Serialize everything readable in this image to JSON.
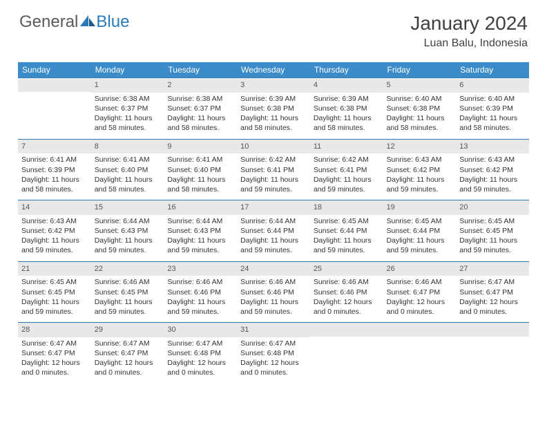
{
  "logo": {
    "text_gray": "General",
    "text_blue": "Blue"
  },
  "header": {
    "month_title": "January 2024",
    "location": "Luan Balu, Indonesia"
  },
  "colors": {
    "header_bar": "#3b8bc8",
    "daynum_bg": "#e8e8e8",
    "border": "#2a7ab9",
    "text": "#333333",
    "logo_gray": "#5a5a5a",
    "logo_blue": "#2a7ab9"
  },
  "dow": [
    "Sunday",
    "Monday",
    "Tuesday",
    "Wednesday",
    "Thursday",
    "Friday",
    "Saturday"
  ],
  "weeks": [
    [
      null,
      {
        "n": "1",
        "sr": "Sunrise: 6:38 AM",
        "ss": "Sunset: 6:37 PM",
        "d1": "Daylight: 11 hours",
        "d2": "and 58 minutes."
      },
      {
        "n": "2",
        "sr": "Sunrise: 6:38 AM",
        "ss": "Sunset: 6:37 PM",
        "d1": "Daylight: 11 hours",
        "d2": "and 58 minutes."
      },
      {
        "n": "3",
        "sr": "Sunrise: 6:39 AM",
        "ss": "Sunset: 6:38 PM",
        "d1": "Daylight: 11 hours",
        "d2": "and 58 minutes."
      },
      {
        "n": "4",
        "sr": "Sunrise: 6:39 AM",
        "ss": "Sunset: 6:38 PM",
        "d1": "Daylight: 11 hours",
        "d2": "and 58 minutes."
      },
      {
        "n": "5",
        "sr": "Sunrise: 6:40 AM",
        "ss": "Sunset: 6:38 PM",
        "d1": "Daylight: 11 hours",
        "d2": "and 58 minutes."
      },
      {
        "n": "6",
        "sr": "Sunrise: 6:40 AM",
        "ss": "Sunset: 6:39 PM",
        "d1": "Daylight: 11 hours",
        "d2": "and 58 minutes."
      }
    ],
    [
      {
        "n": "7",
        "sr": "Sunrise: 6:41 AM",
        "ss": "Sunset: 6:39 PM",
        "d1": "Daylight: 11 hours",
        "d2": "and 58 minutes."
      },
      {
        "n": "8",
        "sr": "Sunrise: 6:41 AM",
        "ss": "Sunset: 6:40 PM",
        "d1": "Daylight: 11 hours",
        "d2": "and 58 minutes."
      },
      {
        "n": "9",
        "sr": "Sunrise: 6:41 AM",
        "ss": "Sunset: 6:40 PM",
        "d1": "Daylight: 11 hours",
        "d2": "and 58 minutes."
      },
      {
        "n": "10",
        "sr": "Sunrise: 6:42 AM",
        "ss": "Sunset: 6:41 PM",
        "d1": "Daylight: 11 hours",
        "d2": "and 59 minutes."
      },
      {
        "n": "11",
        "sr": "Sunrise: 6:42 AM",
        "ss": "Sunset: 6:41 PM",
        "d1": "Daylight: 11 hours",
        "d2": "and 59 minutes."
      },
      {
        "n": "12",
        "sr": "Sunrise: 6:43 AM",
        "ss": "Sunset: 6:42 PM",
        "d1": "Daylight: 11 hours",
        "d2": "and 59 minutes."
      },
      {
        "n": "13",
        "sr": "Sunrise: 6:43 AM",
        "ss": "Sunset: 6:42 PM",
        "d1": "Daylight: 11 hours",
        "d2": "and 59 minutes."
      }
    ],
    [
      {
        "n": "14",
        "sr": "Sunrise: 6:43 AM",
        "ss": "Sunset: 6:42 PM",
        "d1": "Daylight: 11 hours",
        "d2": "and 59 minutes."
      },
      {
        "n": "15",
        "sr": "Sunrise: 6:44 AM",
        "ss": "Sunset: 6:43 PM",
        "d1": "Daylight: 11 hours",
        "d2": "and 59 minutes."
      },
      {
        "n": "16",
        "sr": "Sunrise: 6:44 AM",
        "ss": "Sunset: 6:43 PM",
        "d1": "Daylight: 11 hours",
        "d2": "and 59 minutes."
      },
      {
        "n": "17",
        "sr": "Sunrise: 6:44 AM",
        "ss": "Sunset: 6:44 PM",
        "d1": "Daylight: 11 hours",
        "d2": "and 59 minutes."
      },
      {
        "n": "18",
        "sr": "Sunrise: 6:45 AM",
        "ss": "Sunset: 6:44 PM",
        "d1": "Daylight: 11 hours",
        "d2": "and 59 minutes."
      },
      {
        "n": "19",
        "sr": "Sunrise: 6:45 AM",
        "ss": "Sunset: 6:44 PM",
        "d1": "Daylight: 11 hours",
        "d2": "and 59 minutes."
      },
      {
        "n": "20",
        "sr": "Sunrise: 6:45 AM",
        "ss": "Sunset: 6:45 PM",
        "d1": "Daylight: 11 hours",
        "d2": "and 59 minutes."
      }
    ],
    [
      {
        "n": "21",
        "sr": "Sunrise: 6:45 AM",
        "ss": "Sunset: 6:45 PM",
        "d1": "Daylight: 11 hours",
        "d2": "and 59 minutes."
      },
      {
        "n": "22",
        "sr": "Sunrise: 6:46 AM",
        "ss": "Sunset: 6:45 PM",
        "d1": "Daylight: 11 hours",
        "d2": "and 59 minutes."
      },
      {
        "n": "23",
        "sr": "Sunrise: 6:46 AM",
        "ss": "Sunset: 6:46 PM",
        "d1": "Daylight: 11 hours",
        "d2": "and 59 minutes."
      },
      {
        "n": "24",
        "sr": "Sunrise: 6:46 AM",
        "ss": "Sunset: 6:46 PM",
        "d1": "Daylight: 11 hours",
        "d2": "and 59 minutes."
      },
      {
        "n": "25",
        "sr": "Sunrise: 6:46 AM",
        "ss": "Sunset: 6:46 PM",
        "d1": "Daylight: 12 hours",
        "d2": "and 0 minutes."
      },
      {
        "n": "26",
        "sr": "Sunrise: 6:46 AM",
        "ss": "Sunset: 6:47 PM",
        "d1": "Daylight: 12 hours",
        "d2": "and 0 minutes."
      },
      {
        "n": "27",
        "sr": "Sunrise: 6:47 AM",
        "ss": "Sunset: 6:47 PM",
        "d1": "Daylight: 12 hours",
        "d2": "and 0 minutes."
      }
    ],
    [
      {
        "n": "28",
        "sr": "Sunrise: 6:47 AM",
        "ss": "Sunset: 6:47 PM",
        "d1": "Daylight: 12 hours",
        "d2": "and 0 minutes."
      },
      {
        "n": "29",
        "sr": "Sunrise: 6:47 AM",
        "ss": "Sunset: 6:47 PM",
        "d1": "Daylight: 12 hours",
        "d2": "and 0 minutes."
      },
      {
        "n": "30",
        "sr": "Sunrise: 6:47 AM",
        "ss": "Sunset: 6:48 PM",
        "d1": "Daylight: 12 hours",
        "d2": "and 0 minutes."
      },
      {
        "n": "31",
        "sr": "Sunrise: 6:47 AM",
        "ss": "Sunset: 6:48 PM",
        "d1": "Daylight: 12 hours",
        "d2": "and 0 minutes."
      },
      null,
      null,
      null
    ]
  ]
}
